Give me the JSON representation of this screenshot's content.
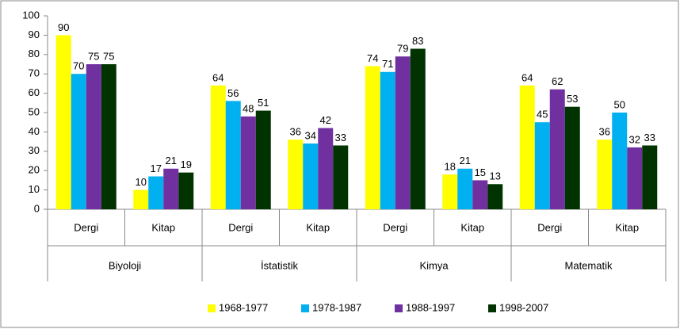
{
  "chart_data": {
    "type": "bar",
    "categories": [
      "Dergi",
      "Kitap",
      "Dergi",
      "Kitap",
      "Dergi",
      "Kitap",
      "Dergi",
      "Kitap"
    ],
    "groups": [
      "Biyoloji",
      "İstatistik",
      "Kimya",
      "Matematik"
    ],
    "series": [
      {
        "name": "1968-1977",
        "color": "#ffff00",
        "values": [
          90,
          10,
          64,
          36,
          74,
          18,
          64,
          36
        ]
      },
      {
        "name": "1978-1987",
        "color": "#00b0f0",
        "values": [
          70,
          17,
          56,
          34,
          71,
          21,
          45,
          50
        ]
      },
      {
        "name": "1988-1997",
        "color": "#7030a0",
        "values": [
          75,
          21,
          48,
          42,
          79,
          15,
          62,
          32
        ]
      },
      {
        "name": "1998-2007",
        "color": "#003300",
        "values": [
          75,
          19,
          51,
          33,
          83,
          13,
          53,
          33
        ]
      }
    ],
    "ylim": [
      0,
      100
    ],
    "yticks": [
      0,
      10,
      20,
      30,
      40,
      50,
      60,
      70,
      80,
      90,
      100
    ],
    "grid": false,
    "legend": "bottom"
  }
}
